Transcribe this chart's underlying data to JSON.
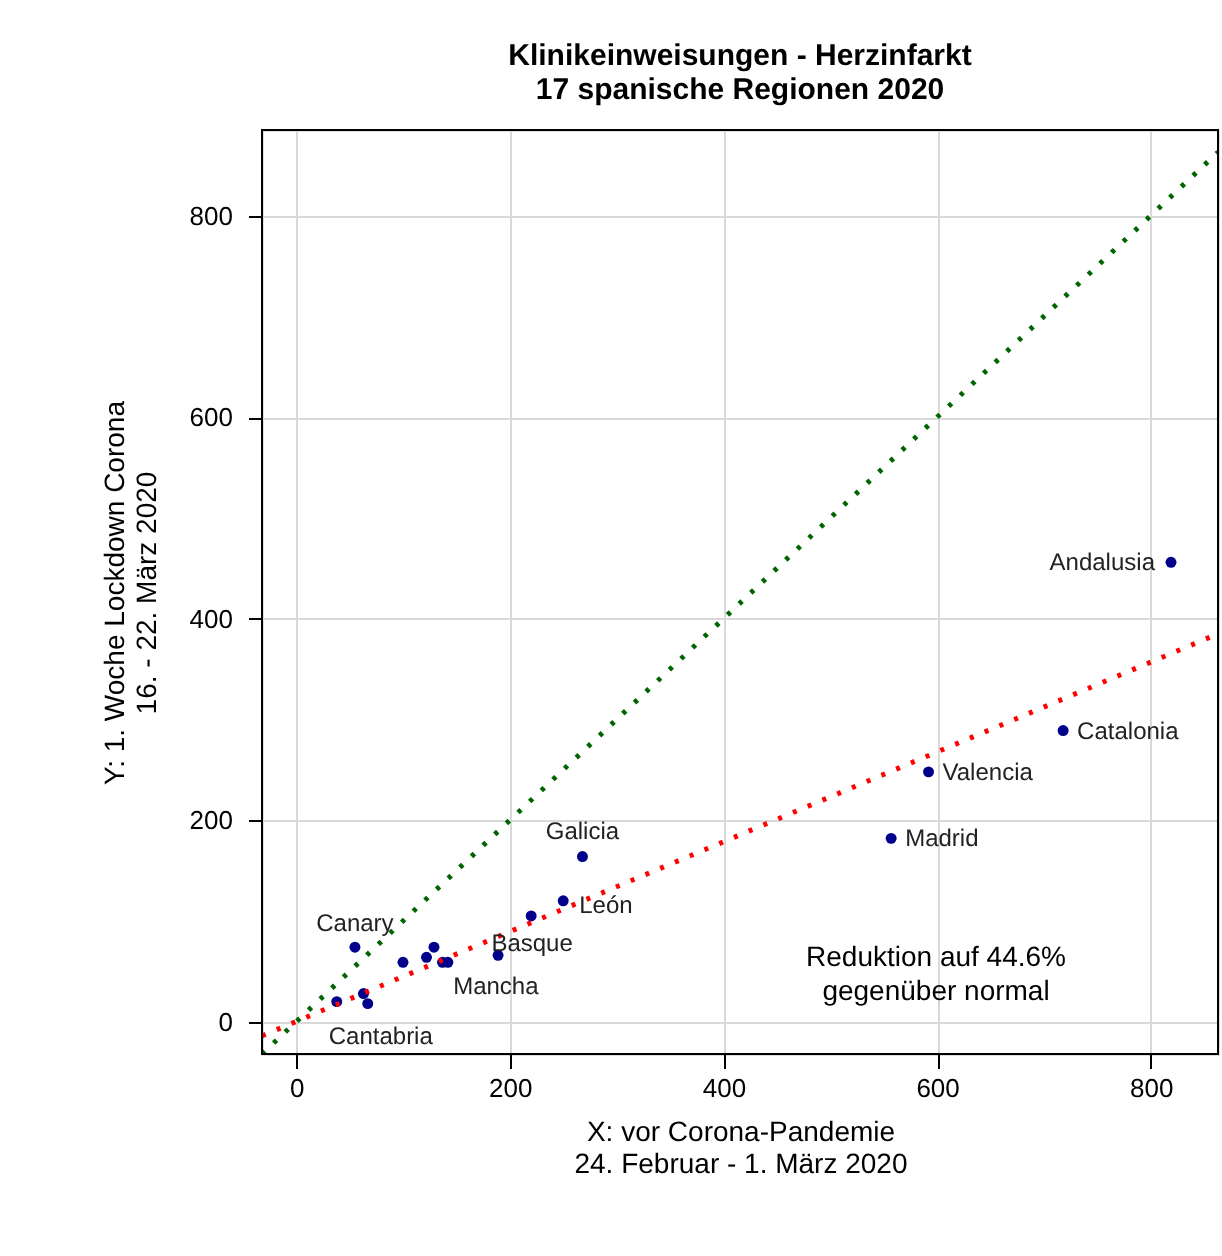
{
  "chart_data": {
    "type": "scatter",
    "title": "Klinikeinweisungen - Herzinfarkt",
    "subtitle": "17 spanische Regionen 2020",
    "xlabel": "X: vor Corona-Pandemie\n24. Februar - 1. März 2020",
    "ylabel": "Y: 1. Woche Lockdown Corona\n16. - 22. März 2020",
    "xlim": [
      -32,
      863
    ],
    "ylim": [
      -32,
      885
    ],
    "xticks": [
      0,
      200,
      400,
      600,
      800
    ],
    "yticks": [
      0,
      200,
      400,
      600,
      800
    ],
    "grid": true,
    "legend": false,
    "series": [
      {
        "marker": "circle",
        "color": "#00008b",
        "x": [
          819,
          718,
          592,
          557,
          268,
          250,
          220,
          189,
          142,
          137,
          129,
          122,
          100,
          55,
          63,
          67,
          38
        ],
        "values": [
          456,
          289,
          248,
          182,
          164,
          120,
          105,
          66,
          59,
          59,
          74,
          64,
          59,
          74,
          28,
          18,
          20
        ]
      },
      {
        "type": "line",
        "color": "#006400",
        "line_style": "dotted",
        "x": [
          -32,
          863
        ],
        "values": [
          -32,
          863
        ]
      },
      {
        "type": "line",
        "color": "#ff0000",
        "line_style": "dotted",
        "x": [
          -32,
          863
        ],
        "values": [
          -14,
          385
        ]
      }
    ],
    "annotations": [
      {
        "text": "Andalusia",
        "x": 819,
        "y": 456
      },
      {
        "text": "Catalonia",
        "x": 718,
        "y": 289
      },
      {
        "text": "Valencia",
        "x": 592,
        "y": 248
      },
      {
        "text": "Madrid",
        "x": 557,
        "y": 182
      },
      {
        "text": "Galicia",
        "x": 268,
        "y": 164
      },
      {
        "text": "León",
        "x": 250,
        "y": 120
      },
      {
        "text": "Basque",
        "x": 189,
        "y": 66
      },
      {
        "text": "Mancha",
        "x": 142,
        "y": 59
      },
      {
        "text": "Canary",
        "x": 55,
        "y": 74
      },
      {
        "text": "Cantabria",
        "x": 38,
        "y": 20
      },
      "Reduktion auf 44.6%\ngegenüber normal"
    ]
  }
}
